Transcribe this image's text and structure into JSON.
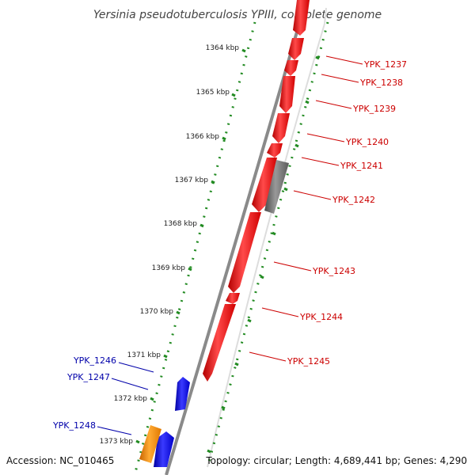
{
  "title": "Yersinia pseudotuberculosis YPIII, complete genome",
  "accession": "Accession: NC_010465",
  "topology": "Topology: circular; Length: 4,689,441 bp; Genes: 4,290",
  "ticks": [
    "1364 kbp",
    "1365 kbp",
    "1366 kbp",
    "1367 kbp",
    "1368 kbp",
    "1369 kbp",
    "1370 kbp",
    "1371 kbp",
    "1372 kbp",
    "1373 kbp"
  ],
  "genes_outer": [
    {
      "label": "YPK_1237",
      "strand": "forward"
    },
    {
      "label": "YPK_1238",
      "strand": "forward"
    },
    {
      "label": "YPK_1239",
      "strand": "forward"
    },
    {
      "label": "YPK_1240",
      "strand": "forward"
    },
    {
      "label": "YPK_1241",
      "strand": "forward"
    },
    {
      "label": "YPK_1242",
      "strand": "forward"
    },
    {
      "label": "YPK_1243",
      "strand": "forward"
    },
    {
      "label": "YPK_1244",
      "strand": "forward"
    },
    {
      "label": "YPK_1245",
      "strand": "forward"
    }
  ],
  "genes_inner": [
    {
      "label": "YPK_1246",
      "strand": "reverse"
    },
    {
      "label": "YPK_1247",
      "strand": "reverse"
    },
    {
      "label": "YPK_1248",
      "strand": "reverse"
    }
  ],
  "colors": {
    "forward_gene": "#ff0000",
    "reverse_gene": "#0000ff",
    "gray_gene": "#707070",
    "orange_gene": "#ff8c00",
    "tick_dots": "#228b22",
    "backbone": "#888888",
    "forward_label": "#cc0000",
    "reverse_label": "#0000aa"
  }
}
